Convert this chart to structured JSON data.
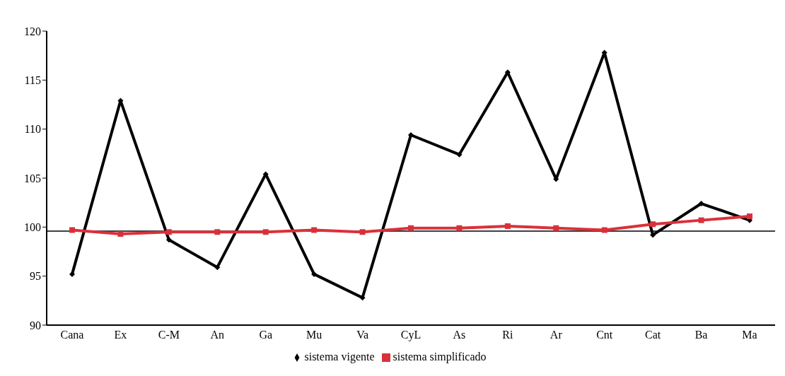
{
  "chart_data": {
    "type": "line",
    "categories": [
      "Cana",
      "Ex",
      "C-M",
      "An",
      "Ga",
      "Mu",
      "Va",
      "CyL",
      "As",
      "Ri",
      "Ar",
      "Cnt",
      "Cat",
      "Ba",
      "Ma"
    ],
    "series": [
      {
        "name": "sistema vigente",
        "color": "#000000",
        "marker": "diamond",
        "values": [
          95.2,
          112.9,
          98.7,
          95.9,
          105.4,
          95.2,
          92.8,
          109.4,
          107.4,
          115.8,
          104.9,
          117.8,
          99.2,
          102.4,
          100.7
        ]
      },
      {
        "name": "sistema simplificado",
        "color": "#d9313a",
        "marker": "square",
        "values": [
          99.7,
          99.3,
          99.5,
          99.5,
          99.5,
          99.7,
          99.5,
          99.9,
          99.9,
          100.1,
          99.9,
          99.7,
          100.3,
          100.7,
          101.1
        ]
      }
    ],
    "ylim": [
      90,
      120
    ],
    "yticks": [
      90,
      95,
      100,
      105,
      110,
      115,
      120
    ],
    "ref_lines": [
      {
        "axis": "y",
        "value": 99.6,
        "color": "#000000"
      }
    ],
    "grid": false,
    "legend": "bottom",
    "line_style": "solid"
  }
}
